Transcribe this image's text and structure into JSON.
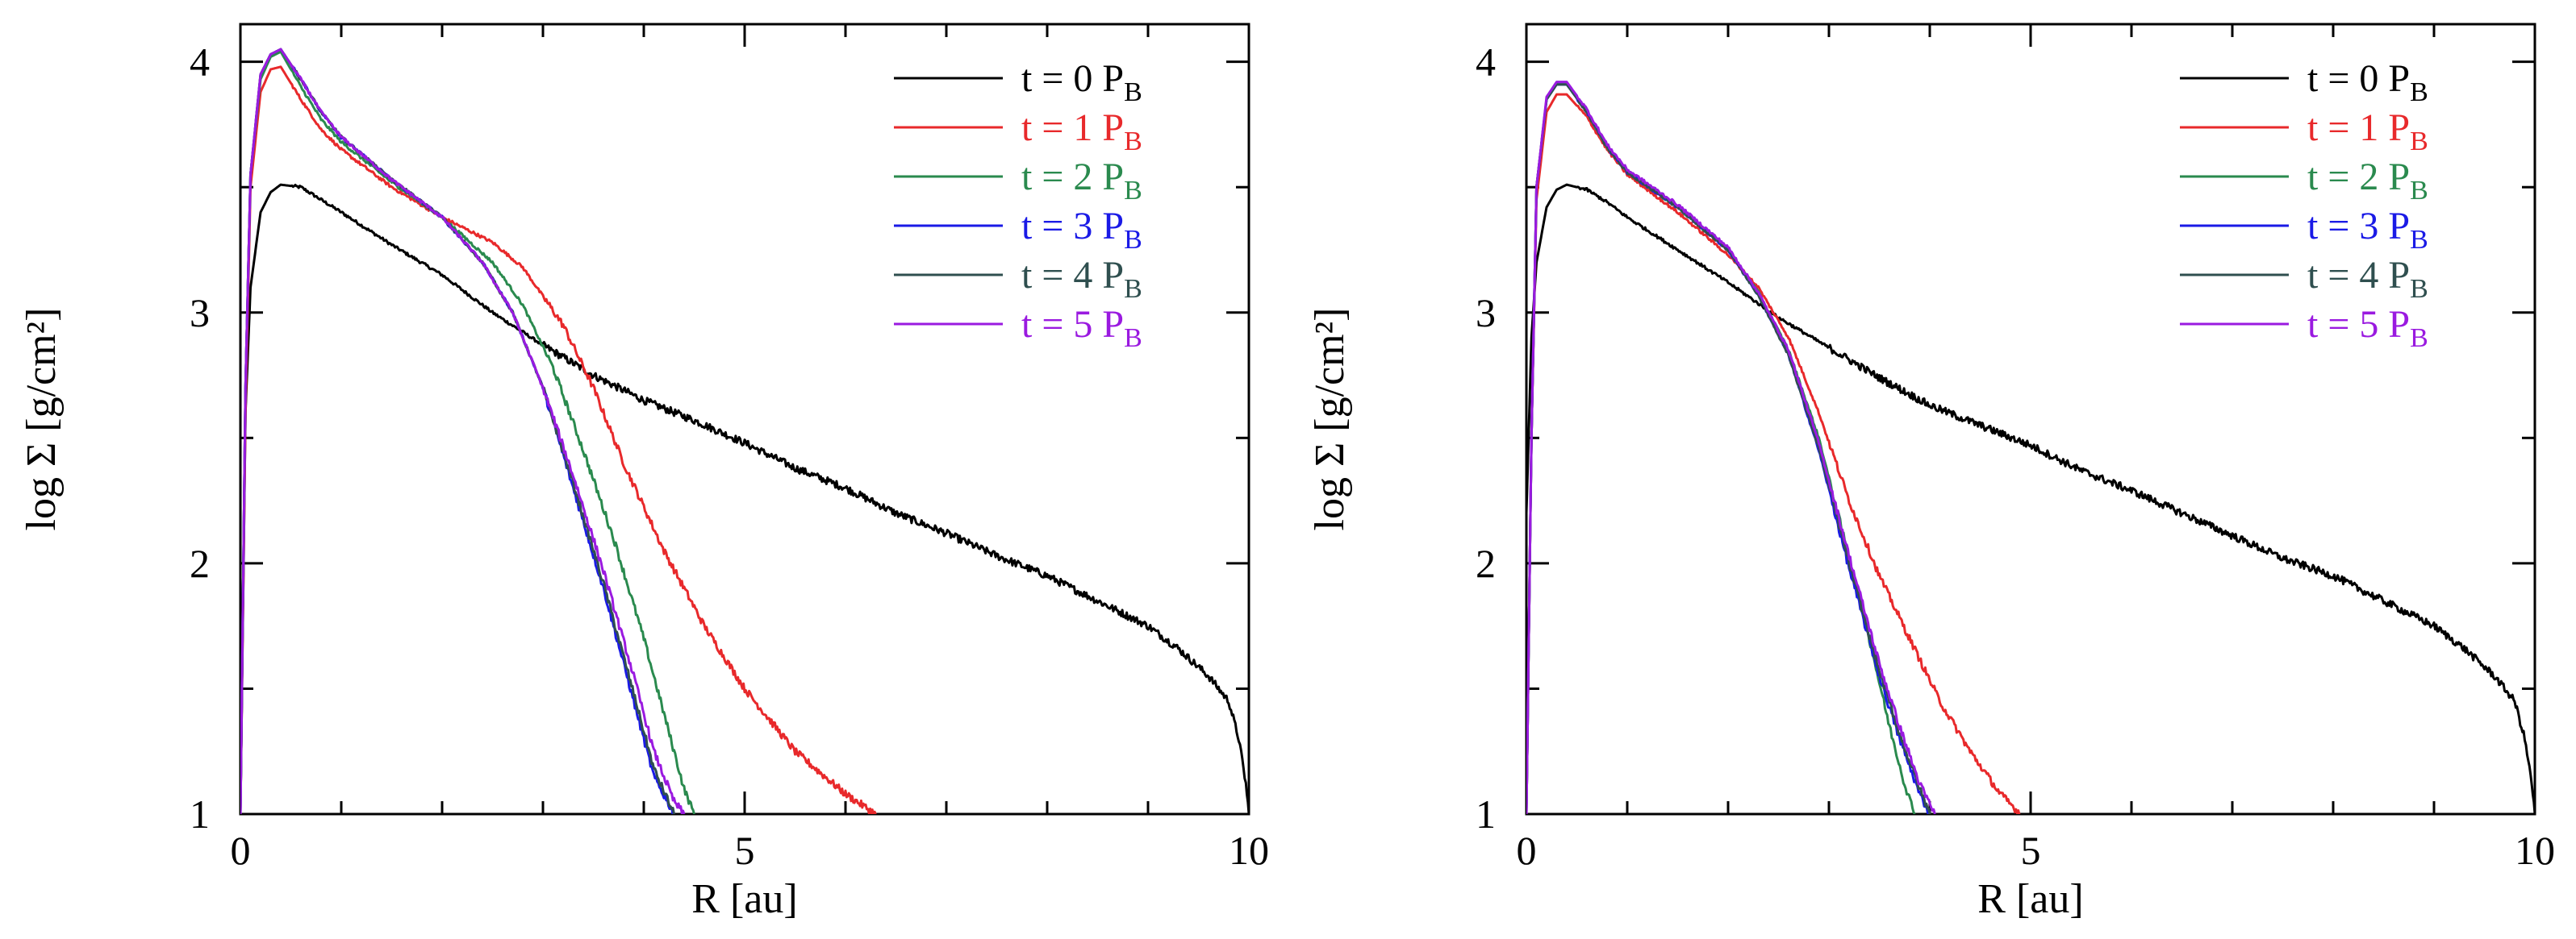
{
  "figure": {
    "panels": 2
  },
  "chart_data": [
    {
      "type": "line",
      "panel": "left",
      "title": "",
      "xlabel": "R [au]",
      "ylabel": "log Σ  [g/cm²]",
      "xlim": [
        0,
        10
      ],
      "ylim": [
        1,
        4.15
      ],
      "xticks": [
        0,
        5,
        10
      ],
      "yticks": [
        1,
        2,
        3,
        4
      ],
      "legend_position": "top-right",
      "series": [
        {
          "name": "t = 0 P",
          "sub": "B",
          "color": "#000000",
          "x": [
            0.0,
            0.05,
            0.1,
            0.2,
            0.3,
            0.4,
            0.6,
            0.8,
            1.0,
            1.5,
            2.0,
            2.5,
            3.0,
            3.5,
            4.0,
            4.5,
            5.0,
            5.5,
            6.0,
            6.5,
            7.0,
            7.5,
            8.0,
            8.5,
            9.0,
            9.3,
            9.6,
            9.8,
            9.9,
            9.97,
            10.0
          ],
          "y": [
            1.0,
            2.6,
            3.1,
            3.4,
            3.48,
            3.51,
            3.5,
            3.45,
            3.4,
            3.27,
            3.15,
            3.0,
            2.87,
            2.75,
            2.65,
            2.57,
            2.48,
            2.38,
            2.3,
            2.2,
            2.12,
            2.03,
            1.95,
            1.85,
            1.75,
            1.66,
            1.55,
            1.45,
            1.3,
            1.12,
            1.0
          ]
        },
        {
          "name": "t = 1 P",
          "sub": "B",
          "color": "#e8292b",
          "x": [
            0.0,
            0.05,
            0.1,
            0.2,
            0.3,
            0.4,
            0.6,
            0.8,
            1.0,
            1.5,
            2.0,
            2.5,
            2.8,
            3.2,
            3.5,
            3.8,
            4.2,
            4.6,
            5.0,
            5.5,
            6.0,
            6.3
          ],
          "y": [
            1.0,
            2.6,
            3.5,
            3.88,
            3.97,
            3.98,
            3.85,
            3.73,
            3.65,
            3.5,
            3.38,
            3.28,
            3.18,
            2.95,
            2.7,
            2.4,
            2.05,
            1.75,
            1.5,
            1.25,
            1.08,
            1.0
          ]
        },
        {
          "name": "t = 2 P",
          "sub": "B",
          "color": "#2a8a4e",
          "x": [
            0.0,
            0.05,
            0.1,
            0.2,
            0.3,
            0.4,
            0.6,
            0.8,
            1.0,
            1.5,
            2.0,
            2.5,
            2.8,
            3.1,
            3.4,
            3.7,
            4.0,
            4.2,
            4.4,
            4.5
          ],
          "y": [
            1.0,
            2.7,
            3.55,
            3.93,
            4.02,
            4.04,
            3.9,
            3.77,
            3.68,
            3.52,
            3.38,
            3.2,
            3.03,
            2.78,
            2.45,
            2.1,
            1.7,
            1.4,
            1.1,
            1.0
          ]
        },
        {
          "name": "t = 3 P",
          "sub": "B",
          "color": "#1a1ae6",
          "x": [
            0.0,
            0.05,
            0.1,
            0.2,
            0.3,
            0.4,
            0.6,
            0.8,
            1.0,
            1.5,
            2.0,
            2.4,
            2.7,
            3.0,
            3.3,
            3.6,
            3.9,
            4.1,
            4.3
          ],
          "y": [
            1.0,
            2.7,
            3.55,
            3.95,
            4.03,
            4.05,
            3.93,
            3.8,
            3.7,
            3.53,
            3.38,
            3.2,
            3.0,
            2.7,
            2.3,
            1.9,
            1.45,
            1.15,
            1.0
          ]
        },
        {
          "name": "t = 4 P",
          "sub": "B",
          "color": "#2f4f4f",
          "x": [
            0.0,
            0.05,
            0.1,
            0.2,
            0.3,
            0.4,
            0.6,
            0.8,
            1.0,
            1.5,
            2.0,
            2.4,
            2.7,
            3.0,
            3.3,
            3.6,
            3.9,
            4.1,
            4.3
          ],
          "y": [
            1.0,
            2.7,
            3.55,
            3.95,
            4.03,
            4.05,
            3.93,
            3.8,
            3.7,
            3.53,
            3.38,
            3.2,
            3.0,
            2.7,
            2.32,
            1.92,
            1.48,
            1.18,
            1.0
          ]
        },
        {
          "name": "t = 5 P",
          "sub": "B",
          "color": "#9a1ae0",
          "x": [
            0.0,
            0.05,
            0.1,
            0.2,
            0.3,
            0.4,
            0.6,
            0.8,
            1.0,
            1.5,
            2.0,
            2.4,
            2.7,
            3.0,
            3.3,
            3.6,
            3.9,
            4.1,
            4.3,
            4.4
          ],
          "y": [
            1.0,
            2.7,
            3.55,
            3.95,
            4.03,
            4.05,
            3.93,
            3.8,
            3.7,
            3.53,
            3.38,
            3.2,
            3.0,
            2.7,
            2.35,
            1.97,
            1.55,
            1.25,
            1.05,
            1.0
          ]
        }
      ]
    },
    {
      "type": "line",
      "panel": "right",
      "title": "",
      "xlabel": "R [au]",
      "ylabel": "log Σ  [g/cm²]",
      "xlim": [
        0,
        10
      ],
      "ylim": [
        1,
        4.15
      ],
      "xticks": [
        0,
        5,
        10
      ],
      "yticks": [
        1,
        2,
        3,
        4
      ],
      "legend_position": "top-right",
      "series": [
        {
          "name": "t = 0 P",
          "sub": "B",
          "color": "#000000",
          "x": [
            0.0,
            0.05,
            0.1,
            0.2,
            0.3,
            0.4,
            0.6,
            0.8,
            1.0,
            1.5,
            2.0,
            2.5,
            3.0,
            3.5,
            4.0,
            4.5,
            5.0,
            5.5,
            6.0,
            6.5,
            7.0,
            7.5,
            8.0,
            8.5,
            9.0,
            9.3,
            9.6,
            9.8,
            9.9,
            9.97,
            10.0
          ],
          "y": [
            2.2,
            2.9,
            3.2,
            3.42,
            3.49,
            3.51,
            3.49,
            3.44,
            3.38,
            3.25,
            3.12,
            2.98,
            2.86,
            2.74,
            2.63,
            2.55,
            2.47,
            2.37,
            2.29,
            2.2,
            2.11,
            2.02,
            1.95,
            1.85,
            1.75,
            1.66,
            1.55,
            1.45,
            1.3,
            1.12,
            1.0
          ]
        },
        {
          "name": "t = 1 P",
          "sub": "B",
          "color": "#e8292b",
          "x": [
            0.0,
            0.05,
            0.1,
            0.2,
            0.3,
            0.4,
            0.6,
            0.8,
            1.0,
            1.5,
            2.0,
            2.3,
            2.6,
            2.9,
            3.2,
            3.5,
            3.8,
            4.1,
            4.4,
            4.7,
            4.9
          ],
          "y": [
            1.0,
            2.5,
            3.45,
            3.8,
            3.87,
            3.87,
            3.78,
            3.65,
            3.55,
            3.4,
            3.23,
            3.1,
            2.9,
            2.6,
            2.25,
            1.95,
            1.7,
            1.45,
            1.25,
            1.08,
            1.0
          ]
        },
        {
          "name": "t = 2 P",
          "sub": "B",
          "color": "#2a8a4e",
          "x": [
            0.0,
            0.05,
            0.1,
            0.2,
            0.3,
            0.4,
            0.6,
            0.8,
            1.0,
            1.5,
            2.0,
            2.3,
            2.6,
            2.9,
            3.2,
            3.4,
            3.6,
            3.75,
            3.85
          ],
          "y": [
            1.0,
            2.5,
            3.5,
            3.85,
            3.91,
            3.91,
            3.8,
            3.66,
            3.56,
            3.42,
            3.25,
            3.08,
            2.85,
            2.5,
            2.02,
            1.7,
            1.35,
            1.12,
            1.0
          ]
        },
        {
          "name": "t = 3 P",
          "sub": "B",
          "color": "#1a1ae6",
          "x": [
            0.0,
            0.05,
            0.1,
            0.2,
            0.3,
            0.4,
            0.6,
            0.8,
            1.0,
            1.5,
            2.0,
            2.3,
            2.6,
            2.9,
            3.2,
            3.5,
            3.7,
            3.9,
            4.0
          ],
          "y": [
            1.0,
            2.5,
            3.5,
            3.85,
            3.91,
            3.91,
            3.8,
            3.66,
            3.56,
            3.42,
            3.25,
            3.07,
            2.83,
            2.45,
            1.98,
            1.55,
            1.3,
            1.08,
            1.0
          ]
        },
        {
          "name": "t = 4 P",
          "sub": "B",
          "color": "#2f4f4f",
          "x": [
            0.0,
            0.05,
            0.1,
            0.2,
            0.3,
            0.4,
            0.6,
            0.8,
            1.0,
            1.5,
            2.0,
            2.3,
            2.6,
            2.9,
            3.2,
            3.5,
            3.7,
            3.9,
            4.0
          ],
          "y": [
            1.0,
            2.5,
            3.5,
            3.85,
            3.91,
            3.91,
            3.8,
            3.66,
            3.56,
            3.42,
            3.25,
            3.07,
            2.83,
            2.46,
            2.0,
            1.57,
            1.32,
            1.1,
            1.0
          ]
        },
        {
          "name": "t = 5 P",
          "sub": "B",
          "color": "#9a1ae0",
          "x": [
            0.0,
            0.05,
            0.1,
            0.2,
            0.3,
            0.4,
            0.6,
            0.8,
            1.0,
            1.5,
            2.0,
            2.3,
            2.6,
            2.9,
            3.2,
            3.5,
            3.7,
            3.9,
            4.05
          ],
          "y": [
            1.0,
            2.5,
            3.5,
            3.86,
            3.92,
            3.92,
            3.81,
            3.67,
            3.57,
            3.43,
            3.26,
            3.08,
            2.85,
            2.48,
            2.03,
            1.6,
            1.35,
            1.12,
            1.0
          ]
        }
      ]
    }
  ]
}
